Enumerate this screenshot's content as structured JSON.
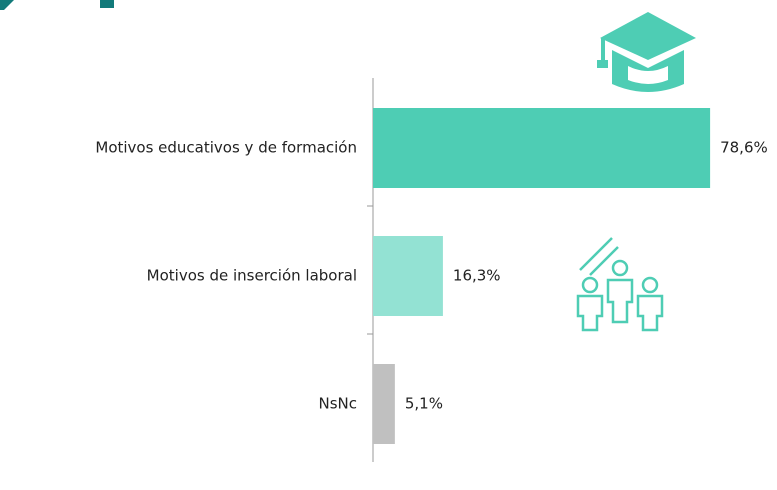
{
  "chart_data": {
    "type": "bar",
    "orientation": "horizontal",
    "categories": [
      "Motivos educativos y de formación",
      "Motivos de inserción laboral",
      "NsNc"
    ],
    "values": [
      78.6,
      16.3,
      5.1
    ],
    "value_labels": [
      "78,6%",
      "16,3%",
      "5,1%"
    ],
    "colors": [
      "#4ecdb4",
      "#93e2d3",
      "#c0c0c0"
    ],
    "xlim": [
      0,
      90
    ]
  }
}
